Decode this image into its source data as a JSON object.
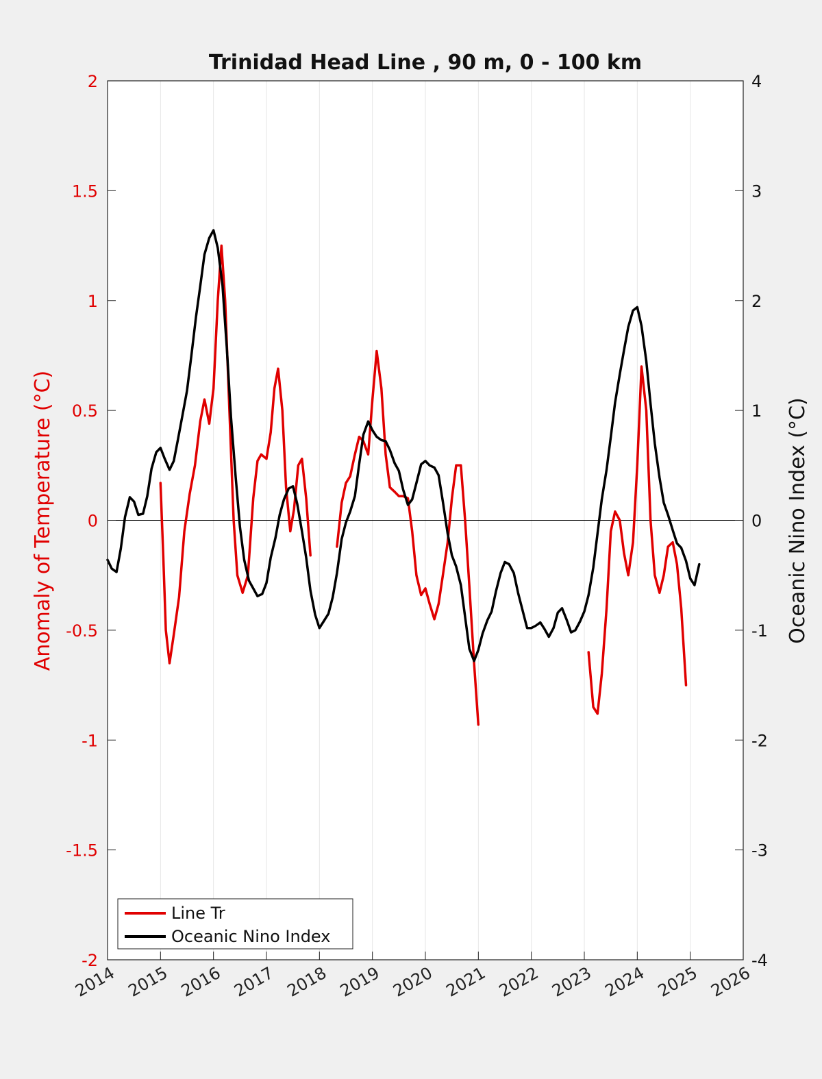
{
  "chart_data": {
    "type": "line",
    "title": "Trinidad Head Line , 90 m, 0 - 100 km",
    "xlabel": "",
    "ylabel_left": "Anomaly of Temperature (°C)",
    "ylabel_right": "Oceanic Nino Index (°C)",
    "xlim": [
      2014,
      2026
    ],
    "ylim_left": [
      -2,
      2
    ],
    "ylim_right": [
      -4,
      4
    ],
    "x_ticks": [
      "2014",
      "2015",
      "2016",
      "2017",
      "2018",
      "2019",
      "2020",
      "2021",
      "2022",
      "2023",
      "2024",
      "2025",
      "2026"
    ],
    "y_left_ticks": [
      "-2",
      "-1.5",
      "-1",
      "-0.5",
      "0",
      "0.5",
      "1",
      "1.5",
      "2"
    ],
    "y_right_ticks": [
      "-4",
      "-3",
      "-2",
      "-1",
      "0",
      "1",
      "2",
      "3",
      "4"
    ],
    "grid": "vertical",
    "legend_position": "bottom-left",
    "colors": {
      "line_tr": "#e00000",
      "oni": "#000000"
    },
    "series": [
      {
        "name": "Line Tr",
        "axis": "left",
        "segments": [
          [
            [
              2015.0,
              0.17
            ],
            [
              2015.05,
              -0.15
            ],
            [
              2015.1,
              -0.5
            ],
            [
              2015.17,
              -0.65
            ],
            [
              2015.25,
              -0.52
            ],
            [
              2015.35,
              -0.35
            ],
            [
              2015.45,
              -0.05
            ],
            [
              2015.55,
              0.12
            ],
            [
              2015.65,
              0.25
            ],
            [
              2015.75,
              0.45
            ],
            [
              2015.83,
              0.55
            ],
            [
              2015.92,
              0.44
            ],
            [
              2016.0,
              0.6
            ],
            [
              2016.08,
              1.0
            ],
            [
              2016.15,
              1.25
            ],
            [
              2016.22,
              1.0
            ],
            [
              2016.3,
              0.5
            ],
            [
              2016.38,
              0.0
            ],
            [
              2016.45,
              -0.25
            ],
            [
              2016.55,
              -0.33
            ],
            [
              2016.65,
              -0.25
            ],
            [
              2016.75,
              0.1
            ],
            [
              2016.83,
              0.27
            ],
            [
              2016.9,
              0.3
            ],
            [
              2017.0,
              0.28
            ],
            [
              2017.08,
              0.4
            ],
            [
              2017.15,
              0.6
            ],
            [
              2017.22,
              0.69
            ],
            [
              2017.3,
              0.5
            ],
            [
              2017.37,
              0.15
            ],
            [
              2017.45,
              -0.05
            ],
            [
              2017.52,
              0.05
            ],
            [
              2017.6,
              0.25
            ],
            [
              2017.67,
              0.28
            ],
            [
              2017.75,
              0.1
            ],
            [
              2017.83,
              -0.16
            ]
          ],
          [
            [
              2018.33,
              -0.12
            ],
            [
              2018.42,
              0.08
            ],
            [
              2018.5,
              0.17
            ],
            [
              2018.58,
              0.2
            ],
            [
              2018.67,
              0.3
            ],
            [
              2018.75,
              0.38
            ],
            [
              2018.83,
              0.36
            ],
            [
              2018.92,
              0.3
            ],
            [
              2019.0,
              0.55
            ],
            [
              2019.08,
              0.77
            ],
            [
              2019.17,
              0.6
            ],
            [
              2019.25,
              0.3
            ],
            [
              2019.33,
              0.15
            ],
            [
              2019.42,
              0.13
            ],
            [
              2019.5,
              0.11
            ],
            [
              2019.58,
              0.11
            ],
            [
              2019.67,
              0.1
            ],
            [
              2019.75,
              -0.05
            ],
            [
              2019.83,
              -0.25
            ],
            [
              2019.92,
              -0.34
            ],
            [
              2020.0,
              -0.31
            ],
            [
              2020.08,
              -0.38
            ],
            [
              2020.17,
              -0.45
            ],
            [
              2020.25,
              -0.38
            ],
            [
              2020.33,
              -0.25
            ],
            [
              2020.42,
              -0.1
            ],
            [
              2020.5,
              0.1
            ],
            [
              2020.58,
              0.25
            ],
            [
              2020.67,
              0.25
            ],
            [
              2020.75,
              0.0
            ],
            [
              2020.83,
              -0.3
            ],
            [
              2020.92,
              -0.65
            ],
            [
              2021.0,
              -0.93
            ]
          ],
          [
            [
              2023.08,
              -0.6
            ],
            [
              2023.17,
              -0.85
            ],
            [
              2023.25,
              -0.88
            ],
            [
              2023.33,
              -0.7
            ],
            [
              2023.42,
              -0.4
            ],
            [
              2023.5,
              -0.05
            ],
            [
              2023.58,
              0.04
            ],
            [
              2023.67,
              0.0
            ],
            [
              2023.75,
              -0.15
            ],
            [
              2023.83,
              -0.25
            ],
            [
              2023.92,
              -0.1
            ],
            [
              2024.0,
              0.25
            ],
            [
              2024.08,
              0.7
            ],
            [
              2024.17,
              0.5
            ],
            [
              2024.25,
              0.0
            ],
            [
              2024.33,
              -0.25
            ],
            [
              2024.42,
              -0.33
            ],
            [
              2024.5,
              -0.25
            ],
            [
              2024.58,
              -0.12
            ],
            [
              2024.67,
              -0.1
            ],
            [
              2024.75,
              -0.2
            ],
            [
              2024.83,
              -0.4
            ],
            [
              2024.92,
              -0.75
            ]
          ]
        ]
      },
      {
        "name": "Oceanic Nino Index",
        "axis": "right",
        "segments": [
          [
            [
              2014.0,
              -0.36
            ],
            [
              2014.08,
              -0.44
            ],
            [
              2014.17,
              -0.47
            ],
            [
              2014.25,
              -0.26
            ],
            [
              2014.33,
              0.03
            ],
            [
              2014.42,
              0.21
            ],
            [
              2014.5,
              0.17
            ],
            [
              2014.58,
              0.05
            ],
            [
              2014.67,
              0.06
            ],
            [
              2014.75,
              0.22
            ],
            [
              2014.83,
              0.47
            ],
            [
              2014.92,
              0.62
            ],
            [
              2015.0,
              0.66
            ],
            [
              2015.08,
              0.56
            ],
            [
              2015.17,
              0.46
            ],
            [
              2015.25,
              0.54
            ],
            [
              2015.33,
              0.74
            ],
            [
              2015.42,
              0.97
            ],
            [
              2015.5,
              1.18
            ],
            [
              2015.58,
              1.49
            ],
            [
              2015.67,
              1.85
            ],
            [
              2015.75,
              2.13
            ],
            [
              2015.83,
              2.42
            ],
            [
              2015.92,
              2.57
            ],
            [
              2016.0,
              2.64
            ],
            [
              2016.08,
              2.48
            ],
            [
              2016.17,
              2.14
            ],
            [
              2016.25,
              1.58
            ],
            [
              2016.33,
              0.94
            ],
            [
              2016.42,
              0.39
            ],
            [
              2016.5,
              -0.06
            ],
            [
              2016.58,
              -0.36
            ],
            [
              2016.67,
              -0.55
            ],
            [
              2016.75,
              -0.62
            ],
            [
              2016.83,
              -0.69
            ],
            [
              2016.92,
              -0.67
            ],
            [
              2017.0,
              -0.57
            ],
            [
              2017.08,
              -0.34
            ],
            [
              2017.17,
              -0.16
            ],
            [
              2017.25,
              0.05
            ],
            [
              2017.33,
              0.19
            ],
            [
              2017.42,
              0.29
            ],
            [
              2017.5,
              0.31
            ],
            [
              2017.58,
              0.15
            ],
            [
              2017.67,
              -0.1
            ],
            [
              2017.75,
              -0.34
            ],
            [
              2017.83,
              -0.64
            ],
            [
              2017.92,
              -0.86
            ],
            [
              2018.0,
              -0.98
            ],
            [
              2018.08,
              -0.92
            ],
            [
              2018.17,
              -0.85
            ],
            [
              2018.25,
              -0.7
            ],
            [
              2018.33,
              -0.48
            ],
            [
              2018.42,
              -0.17
            ],
            [
              2018.5,
              -0.02
            ],
            [
              2018.58,
              0.08
            ],
            [
              2018.67,
              0.22
            ],
            [
              2018.75,
              0.51
            ],
            [
              2018.83,
              0.78
            ],
            [
              2018.92,
              0.9
            ],
            [
              2019.0,
              0.82
            ],
            [
              2019.08,
              0.76
            ],
            [
              2019.17,
              0.73
            ],
            [
              2019.25,
              0.72
            ],
            [
              2019.33,
              0.64
            ],
            [
              2019.42,
              0.52
            ],
            [
              2019.5,
              0.45
            ],
            [
              2019.58,
              0.28
            ],
            [
              2019.67,
              0.14
            ],
            [
              2019.75,
              0.19
            ],
            [
              2019.83,
              0.34
            ],
            [
              2019.92,
              0.51
            ],
            [
              2020.0,
              0.54
            ],
            [
              2020.08,
              0.5
            ],
            [
              2020.17,
              0.48
            ],
            [
              2020.25,
              0.41
            ],
            [
              2020.33,
              0.17
            ],
            [
              2020.42,
              -0.12
            ],
            [
              2020.5,
              -0.32
            ],
            [
              2020.58,
              -0.42
            ],
            [
              2020.67,
              -0.59
            ],
            [
              2020.75,
              -0.88
            ],
            [
              2020.83,
              -1.17
            ],
            [
              2020.92,
              -1.28
            ],
            [
              2021.0,
              -1.18
            ],
            [
              2021.08,
              -1.03
            ],
            [
              2021.17,
              -0.91
            ],
            [
              2021.25,
              -0.83
            ],
            [
              2021.33,
              -0.65
            ],
            [
              2021.42,
              -0.48
            ],
            [
              2021.5,
              -0.38
            ],
            [
              2021.58,
              -0.4
            ],
            [
              2021.67,
              -0.48
            ],
            [
              2021.75,
              -0.66
            ],
            [
              2021.83,
              -0.81
            ],
            [
              2021.92,
              -0.98
            ],
            [
              2022.0,
              -0.98
            ],
            [
              2022.08,
              -0.96
            ],
            [
              2022.17,
              -0.93
            ],
            [
              2022.25,
              -0.99
            ],
            [
              2022.33,
              -1.06
            ],
            [
              2022.42,
              -0.98
            ],
            [
              2022.5,
              -0.84
            ],
            [
              2022.58,
              -0.8
            ],
            [
              2022.67,
              -0.91
            ],
            [
              2022.75,
              -1.02
            ],
            [
              2022.83,
              -1.0
            ],
            [
              2022.92,
              -0.92
            ],
            [
              2023.0,
              -0.83
            ],
            [
              2023.08,
              -0.68
            ],
            [
              2023.17,
              -0.43
            ],
            [
              2023.25,
              -0.12
            ],
            [
              2023.33,
              0.19
            ],
            [
              2023.42,
              0.46
            ],
            [
              2023.5,
              0.76
            ],
            [
              2023.58,
              1.07
            ],
            [
              2023.67,
              1.33
            ],
            [
              2023.75,
              1.55
            ],
            [
              2023.83,
              1.76
            ],
            [
              2023.92,
              1.91
            ],
            [
              2024.0,
              1.94
            ],
            [
              2024.08,
              1.77
            ],
            [
              2024.17,
              1.45
            ],
            [
              2024.25,
              1.06
            ],
            [
              2024.33,
              0.7
            ],
            [
              2024.42,
              0.39
            ],
            [
              2024.5,
              0.16
            ],
            [
              2024.58,
              0.05
            ],
            [
              2024.67,
              -0.09
            ],
            [
              2024.75,
              -0.21
            ],
            [
              2024.83,
              -0.25
            ],
            [
              2024.92,
              -0.37
            ],
            [
              2025.0,
              -0.53
            ],
            [
              2025.08,
              -0.59
            ],
            [
              2025.17,
              -0.4
            ]
          ]
        ]
      }
    ]
  }
}
